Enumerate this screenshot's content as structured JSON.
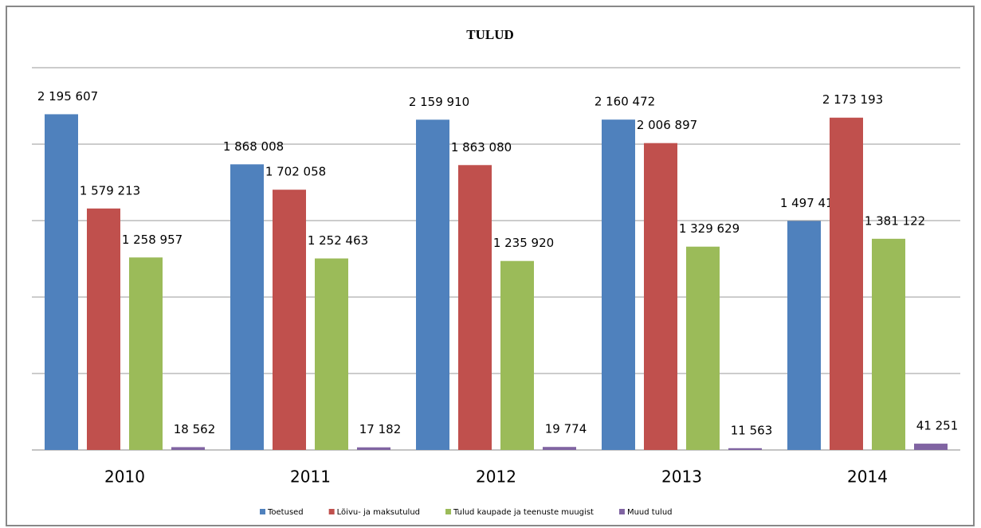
{
  "chart_data": {
    "type": "bar",
    "title": "TULUD",
    "categories": [
      "2010",
      "2011",
      "2012",
      "2013",
      "2014"
    ],
    "series": [
      {
        "name": "Toetused",
        "color": "#4f81bd",
        "values": [
          2195607,
          1868008,
          2159910,
          2160472,
          1497418
        ],
        "value_labels": [
          "2 195 607",
          "1 868 008",
          "2 159 910",
          "2 160 472",
          "1 497 418"
        ]
      },
      {
        "name": "Lõivu- ja maksutulud",
        "color": "#c0504d",
        "values": [
          1579213,
          1702058,
          1863080,
          2006897,
          2173193
        ],
        "value_labels": [
          "1 579 213",
          "1 702 058",
          "1 863 080",
          "2 006 897",
          "2 173 193"
        ]
      },
      {
        "name": "Tulud kaupade ja teenuste muugist",
        "color": "#9bbb59",
        "values": [
          1258957,
          1252463,
          1235920,
          1329629,
          1381122
        ],
        "value_labels": [
          "1 258 957",
          "1 252 463",
          "1 235 920",
          "1 329 629",
          "1 381 122"
        ]
      },
      {
        "name": "Muud tulud",
        "color": "#8064a2",
        "values": [
          18562,
          17182,
          19774,
          11563,
          41251
        ],
        "value_labels": [
          "18 562",
          "17 182",
          "19 774",
          "11 563",
          "41 251"
        ]
      }
    ],
    "ylim": [
      0,
      2500000
    ],
    "yticks": [
      0,
      500000,
      1000000,
      1500000,
      2000000,
      2500000
    ],
    "grid": true
  }
}
